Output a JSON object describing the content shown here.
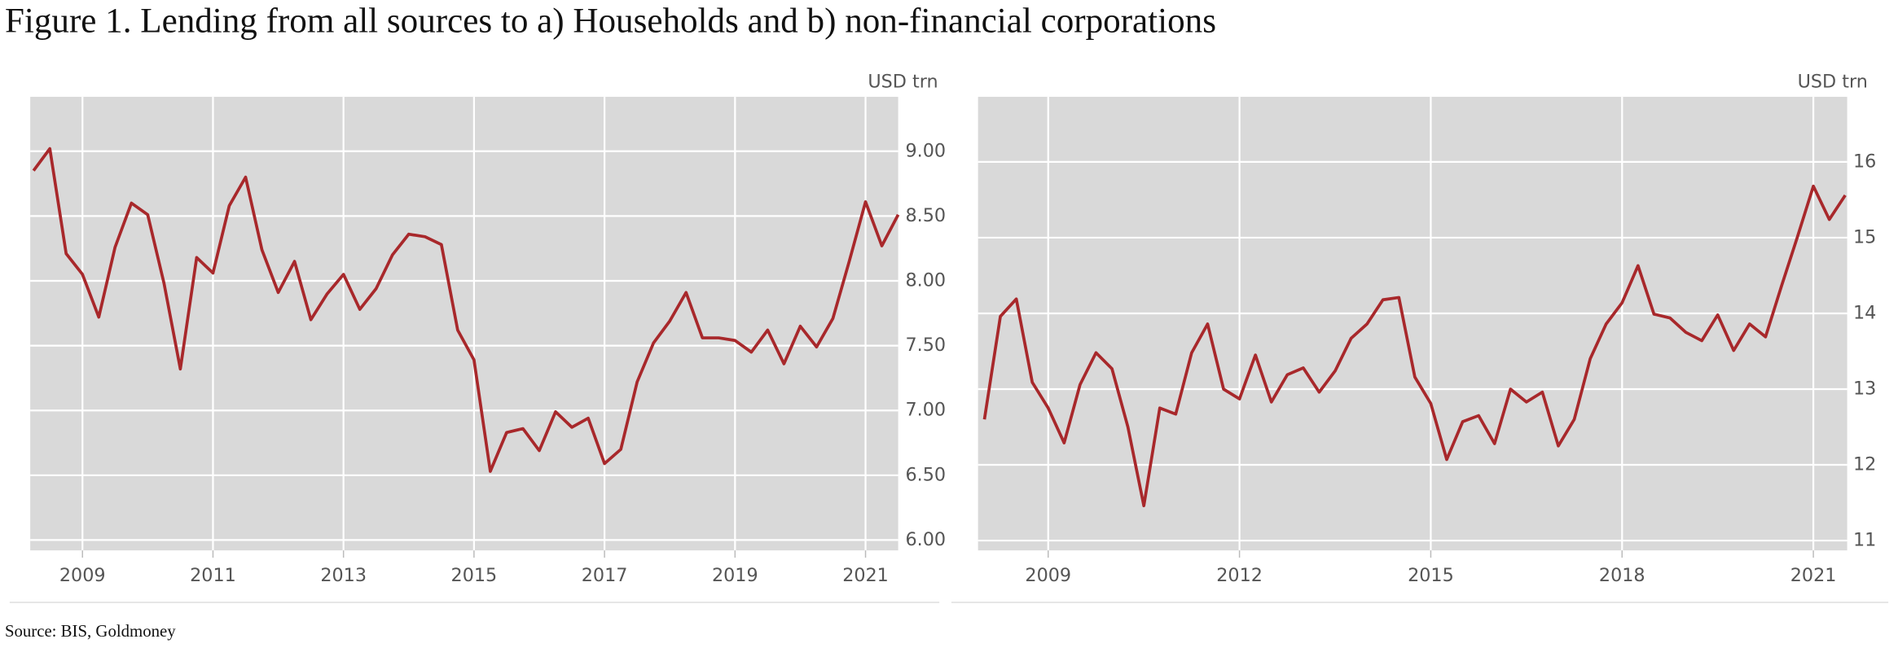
{
  "title": "Figure 1. Lending from all sources to a) Households and b) non-financial corporations",
  "source": "Source: BIS, Goldmoney",
  "chart_data": [
    {
      "type": "line",
      "y_axis_label": "USD trn",
      "x": [
        2008.25,
        2008.5,
        2008.75,
        2009,
        2009.25,
        2009.5,
        2009.75,
        2010,
        2010.25,
        2010.5,
        2010.75,
        2011,
        2011.25,
        2011.5,
        2011.75,
        2012,
        2012.25,
        2012.5,
        2012.75,
        2013,
        2013.25,
        2013.5,
        2013.75,
        2014,
        2014.25,
        2014.5,
        2014.75,
        2015,
        2015.25,
        2015.5,
        2015.75,
        2016,
        2016.25,
        2016.5,
        2016.75,
        2017,
        2017.25,
        2017.5,
        2017.75,
        2018,
        2018.25,
        2018.5,
        2018.75,
        2019,
        2019.25,
        2019.5,
        2019.75,
        2020,
        2020.25,
        2020.5,
        2020.75,
        2021,
        2021.25,
        2021.5
      ],
      "series": [
        {
          "color": "#a8282b",
          "values": [
            8.85,
            9.02,
            8.21,
            8.05,
            7.72,
            8.26,
            8.6,
            8.51,
            7.98,
            7.32,
            8.18,
            8.06,
            8.58,
            8.8,
            8.24,
            7.91,
            8.15,
            7.7,
            7.9,
            8.05,
            7.78,
            7.94,
            8.2,
            8.36,
            8.34,
            8.28,
            7.62,
            7.39,
            6.53,
            6.83,
            6.86,
            6.69,
            6.99,
            6.87,
            6.94,
            6.59,
            6.7,
            7.22,
            7.52,
            7.69,
            7.91,
            7.56,
            7.56,
            7.54,
            7.45,
            7.62,
            7.36,
            7.65,
            7.49,
            7.71,
            8.15,
            8.61,
            8.27,
            8.51
          ]
        }
      ],
      "xlim": [
        2008.2,
        2021.5
      ],
      "xticks": [
        2009,
        2011,
        2013,
        2015,
        2017,
        2019,
        2021
      ],
      "ylim": [
        5.92,
        9.42
      ],
      "yticks": [
        {
          "value": 6,
          "label": "6.00"
        },
        {
          "value": 6.5,
          "label": "6.50"
        },
        {
          "value": 7,
          "label": "7.00"
        },
        {
          "value": 7.5,
          "label": "7.50"
        },
        {
          "value": 8,
          "label": "8.00"
        },
        {
          "value": 8.5,
          "label": "8.50"
        },
        {
          "value": 9,
          "label": "9.00"
        }
      ],
      "grid": true
    },
    {
      "type": "line",
      "y_axis_label": "USD trn",
      "x": [
        2008,
        2008.25,
        2008.5,
        2008.75,
        2009,
        2009.25,
        2009.5,
        2009.75,
        2010,
        2010.25,
        2010.5,
        2010.75,
        2011,
        2011.25,
        2011.5,
        2011.75,
        2012,
        2012.25,
        2012.5,
        2012.75,
        2013,
        2013.25,
        2013.5,
        2013.75,
        2014,
        2014.25,
        2014.5,
        2014.75,
        2015,
        2015.25,
        2015.5,
        2015.75,
        2016,
        2016.25,
        2016.5,
        2016.75,
        2017,
        2017.25,
        2017.5,
        2017.75,
        2018,
        2018.25,
        2018.5,
        2018.75,
        2019,
        2019.25,
        2019.5,
        2019.75,
        2020,
        2020.25,
        2020.5,
        2020.75,
        2021,
        2021.25,
        2021.5
      ],
      "series": [
        {
          "color": "#a8282b",
          "values": [
            12.6,
            13.96,
            14.19,
            13.09,
            12.75,
            12.29,
            13.06,
            13.48,
            13.27,
            12.5,
            11.46,
            12.75,
            12.67,
            13.48,
            13.86,
            13.0,
            12.87,
            13.45,
            12.83,
            13.19,
            13.28,
            12.96,
            13.24,
            13.67,
            13.86,
            14.18,
            14.21,
            13.16,
            12.81,
            12.07,
            12.57,
            12.65,
            12.28,
            13.0,
            12.83,
            12.96,
            12.25,
            12.6,
            13.4,
            13.86,
            14.14,
            14.63,
            13.99,
            13.94,
            13.75,
            13.64,
            13.98,
            13.51,
            13.86,
            13.69,
            14.36,
            15.01,
            15.68,
            15.24,
            15.56
          ]
        }
      ],
      "xlim": [
        2007.9,
        2021.53
      ],
      "xticks": [
        2009,
        2012,
        2015,
        2018,
        2021
      ],
      "ylim": [
        10.87,
        16.86
      ],
      "yticks": [
        11,
        12,
        13,
        14,
        15,
        16
      ],
      "grid": true
    }
  ]
}
